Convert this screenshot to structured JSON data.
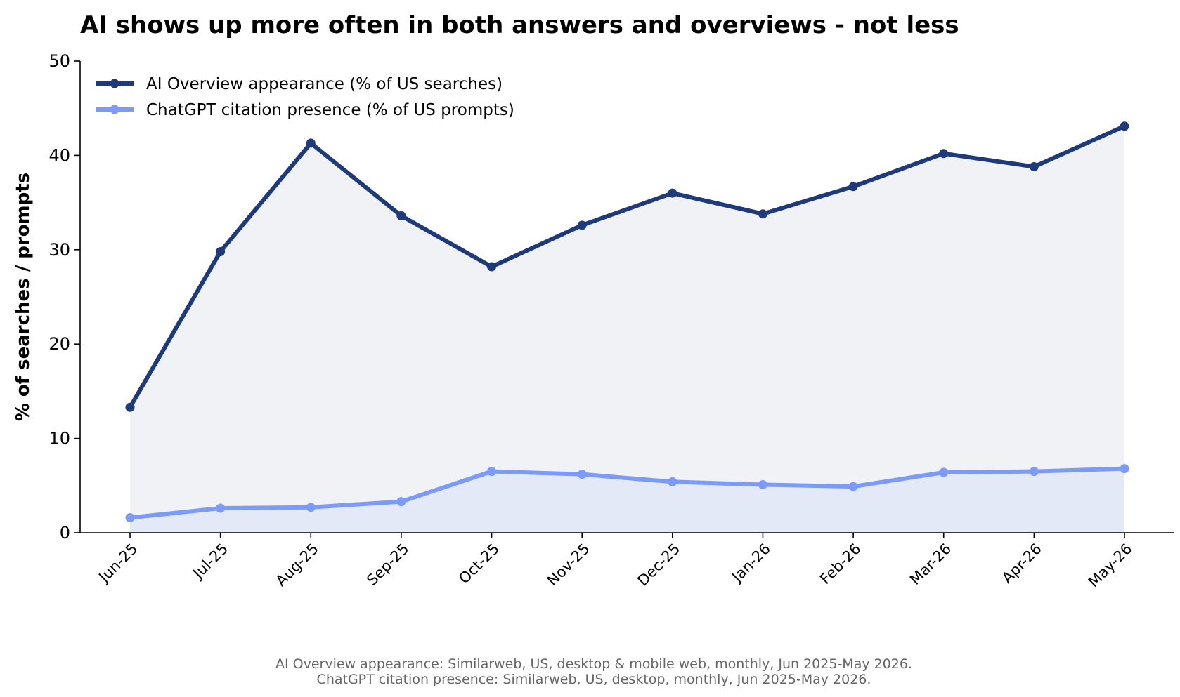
{
  "chart_data": {
    "type": "line",
    "title": "AI shows up more often in both answers and overviews - not less",
    "xlabel": "",
    "ylabel": "% of searches / prompts",
    "categories": [
      "Jun-25",
      "Jul-25",
      "Aug-25",
      "Sep-25",
      "Oct-25",
      "Nov-25",
      "Dec-25",
      "Jan-26",
      "Feb-26",
      "Mar-26",
      "Apr-26",
      "May-26"
    ],
    "ylim": [
      0,
      50
    ],
    "yticks": [
      0,
      10,
      20,
      30,
      40,
      50
    ],
    "grid": false,
    "legend_position": "top-left",
    "area_fill": true,
    "series": [
      {
        "name": "AI Overview appearance (% of US searches)",
        "color": "#1f3a7a",
        "fill_color": "#f0f2f6",
        "values": [
          13.3,
          29.8,
          41.3,
          33.6,
          28.2,
          32.6,
          36.0,
          33.8,
          36.7,
          40.2,
          38.8,
          43.1
        ]
      },
      {
        "name": "ChatGPT citation presence (% of US prompts)",
        "color": "#7b9af9",
        "fill_color": "#e4e9f7",
        "values": [
          1.6,
          2.6,
          2.7,
          3.3,
          6.5,
          6.2,
          5.4,
          5.1,
          4.9,
          6.4,
          6.5,
          6.8
        ]
      }
    ],
    "notes": [
      "AI Overview appearance: Similarweb, US, desktop & mobile web, monthly, Jun 2025-May 2026.",
      "ChatGPT citation presence: Similarweb, US, desktop, monthly, Jun 2025-May 2026."
    ]
  }
}
